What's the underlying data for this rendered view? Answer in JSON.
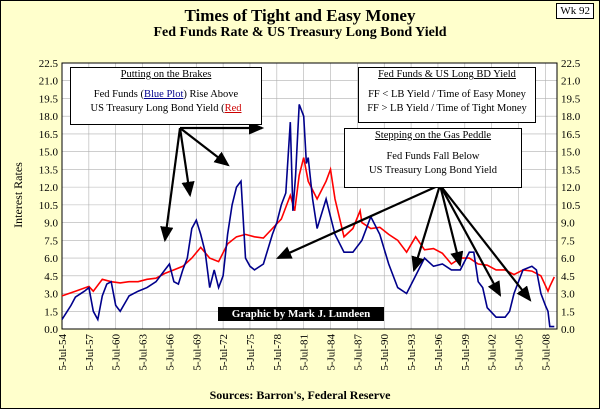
{
  "header": {
    "title": "Times of Tight and Easy Money",
    "subtitle": "Fed Funds Rate & US Treasury Long Bond Yield",
    "week": "Wk 92"
  },
  "source": "Sources: Barron's, Federal Reserve",
  "credit": "Graphic by Mark J. Lundeen",
  "boxes": {
    "brakes": {
      "head": "Putting on the Brakes",
      "line1a": "Fed Funds (",
      "line1b": "Blue Plot",
      "line1c": ") Rise Above",
      "line2a": "US Treasury Long Bond Yield (",
      "line2b": "Red"
    },
    "yield": {
      "head": "Fed Funds & US Long BD Yield",
      "line1": "FF < LB Yield / Time of Easy Money",
      "line2": "FF > LB Yield / Time of Tight Money"
    },
    "gas": {
      "head": "Stepping on the Gas Peddle",
      "line1": "Fed Funds Fall Below",
      "line2": "US Treasury Long Bond Yield"
    }
  },
  "colors": {
    "fed_funds": "#00008b",
    "long_bond": "#ff0000",
    "plot_bg": "#ffffff",
    "page_bg": "#ffffcc"
  },
  "chart_data": {
    "type": "line",
    "title": "Times of Tight and Easy Money",
    "ylabel": "Interest Rates",
    "xlabel": "",
    "ylim": [
      0,
      22.5
    ],
    "xlim": [
      1954.5,
      2009.8
    ],
    "grid": true,
    "y_ticks": [
      "0.0",
      "1.5",
      "3.0",
      "4.5",
      "6.0",
      "7.5",
      "9.0",
      "10.5",
      "12.0",
      "13.5",
      "15.0",
      "16.5",
      "18.0",
      "19.5",
      "21.0",
      "22.5"
    ],
    "x_ticks": [
      "5-Jul-54",
      "5-Jul-57",
      "5-Jul-60",
      "5-Jul-63",
      "5-Jul-66",
      "5-Jul-69",
      "5-Jul-72",
      "5-Jul-75",
      "5-Jul-78",
      "5-Jul-81",
      "5-Jul-84",
      "5-Jul-87",
      "5-Jul-90",
      "5-Jul-93",
      "5-Jul-96",
      "5-Jul-99",
      "5-Jul-02",
      "5-Jul-05",
      "5-Jul-08"
    ],
    "x_tick_years": [
      1954.5,
      1957.5,
      1960.5,
      1963.5,
      1966.5,
      1969.5,
      1972.5,
      1975.5,
      1978.5,
      1981.5,
      1984.5,
      1987.5,
      1990.5,
      1993.5,
      1996.5,
      1999.5,
      2002.5,
      2005.5,
      2008.5
    ],
    "series": [
      {
        "name": "Fed Funds Rate",
        "x": [
          1954.5,
          1955,
          1955.5,
          1956,
          1957,
          1957.5,
          1958,
          1958.5,
          1959,
          1959.5,
          1960,
          1960.5,
          1961,
          1962,
          1963,
          1964,
          1965,
          1966,
          1966.5,
          1967,
          1967.5,
          1968,
          1968.5,
          1969,
          1969.5,
          1970,
          1970.5,
          1971,
          1971.5,
          1972,
          1972.5,
          1973,
          1973.5,
          1974,
          1974.5,
          1975,
          1975.5,
          1976,
          1977,
          1978,
          1978.5,
          1979,
          1979.5,
          1980,
          1980.3,
          1980.6,
          1981,
          1981.5,
          1981.8,
          1982,
          1982.5,
          1983,
          1984,
          1984.5,
          1985,
          1986,
          1987,
          1988,
          1989,
          1990,
          1991,
          1992,
          1993,
          1994,
          1995,
          1996,
          1997,
          1998,
          1999,
          2000,
          2000.5,
          2001,
          2001.5,
          2002,
          2003,
          2004,
          2004.5,
          2005,
          2006,
          2007,
          2007.5,
          2008,
          2008.5,
          2008.8,
          2009,
          2009.5
        ],
        "values": [
          0.8,
          1.4,
          2.0,
          2.7,
          3.2,
          3.5,
          1.5,
          0.8,
          2.8,
          3.8,
          4.0,
          2.0,
          1.5,
          2.8,
          3.2,
          3.5,
          4.0,
          5.0,
          5.5,
          4.0,
          3.8,
          5.0,
          6.0,
          8.5,
          9.2,
          8.0,
          6.5,
          3.5,
          5.0,
          3.5,
          4.5,
          8.0,
          10.5,
          12.0,
          12.5,
          6.0,
          5.3,
          5.0,
          5.5,
          8.0,
          9.0,
          10.5,
          11.5,
          17.5,
          10.0,
          13.0,
          19.0,
          18.0,
          14.0,
          14.5,
          11.0,
          8.5,
          11.0,
          9.5,
          8.0,
          6.5,
          6.5,
          7.5,
          9.5,
          8.0,
          5.5,
          3.5,
          3.0,
          4.5,
          6.0,
          5.3,
          5.5,
          5.0,
          5.0,
          6.5,
          6.5,
          4.0,
          3.5,
          1.8,
          1.0,
          1.0,
          1.5,
          3.0,
          5.0,
          5.3,
          5.0,
          3.0,
          2.0,
          1.5,
          0.2,
          0.2
        ]
      },
      {
        "name": "US Treasury Long Bond Yield",
        "x": [
          1954.5,
          1956,
          1957.5,
          1958,
          1959,
          1960,
          1961,
          1962,
          1963,
          1964,
          1965,
          1966,
          1967,
          1968,
          1969,
          1970,
          1971,
          1972,
          1973,
          1974,
          1975,
          1976,
          1977,
          1978,
          1979,
          1980,
          1980.5,
          1981,
          1981.5,
          1982,
          1983,
          1984,
          1984.5,
          1985,
          1986,
          1987,
          1987.8,
          1988,
          1989,
          1990,
          1991,
          1992,
          1993,
          1994,
          1995,
          1996,
          1997,
          1998,
          1999,
          2000,
          2001,
          2002,
          2003,
          2004,
          2005,
          2006,
          2007,
          2008,
          2008.8,
          2009,
          2009.5
        ],
        "values": [
          2.8,
          3.2,
          3.6,
          3.2,
          4.2,
          4.0,
          3.9,
          4.0,
          4.0,
          4.2,
          4.3,
          4.7,
          5.0,
          5.3,
          6.0,
          6.9,
          6.0,
          5.7,
          7.2,
          7.8,
          8.0,
          7.8,
          7.7,
          8.5,
          9.3,
          11.3,
          10.0,
          13.0,
          14.5,
          12.5,
          11.0,
          12.5,
          13.5,
          11.0,
          7.8,
          8.5,
          10.0,
          9.0,
          8.5,
          8.6,
          8.0,
          7.5,
          6.5,
          7.8,
          6.7,
          6.8,
          6.4,
          5.5,
          6.0,
          6.0,
          5.5,
          5.4,
          5.0,
          5.0,
          4.6,
          5.0,
          4.9,
          4.5,
          3.2,
          3.6,
          4.4
        ]
      }
    ]
  }
}
